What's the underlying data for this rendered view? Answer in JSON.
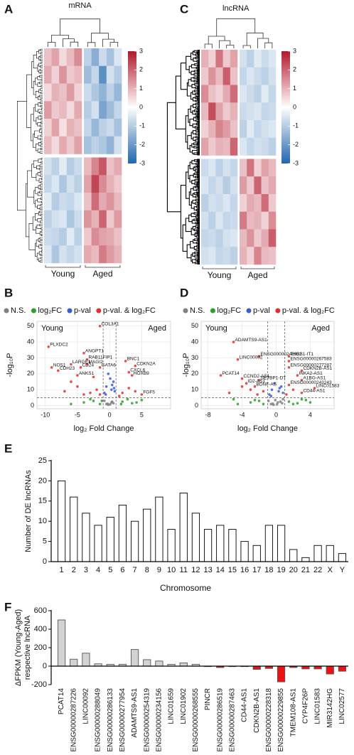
{
  "chart_data": [
    {
      "panel": "A",
      "type": "heatmap",
      "title": "mRNA",
      "clim": [
        -3,
        3
      ],
      "cticks": [
        3,
        2,
        1,
        0,
        -1,
        -2,
        -3
      ],
      "groups": [
        {
          "name": "Young",
          "values": [
            [
              0.8,
              1.2,
              0.5,
              0.9,
              1.5
            ],
            [
              1.1,
              0.6,
              1.4,
              0.7,
              0.9
            ],
            [
              0.5,
              1.0,
              0.8,
              1.3,
              0.6
            ],
            [
              1.3,
              0.7,
              0.9,
              0.5,
              1.1
            ],
            [
              0.6,
              1.2,
              0.4,
              1.0,
              0.8
            ],
            [
              0.9,
              0.5,
              1.1,
              0.7,
              1.2
            ],
            [
              -0.6,
              -0.9,
              -0.4,
              -1.0,
              -0.7
            ],
            [
              -0.8,
              -0.5,
              -1.1,
              -0.6,
              -0.9
            ],
            [
              -0.4,
              -1.0,
              -0.7,
              -0.8,
              -0.5
            ],
            [
              -0.9,
              -0.6,
              -0.5,
              -1.1,
              -0.7
            ],
            [
              -0.7,
              -0.8,
              -1.0,
              -0.4,
              -0.9
            ],
            [
              -0.5,
              -1.1,
              -0.6,
              -0.8,
              -0.6
            ]
          ]
        },
        {
          "name": "Aged",
          "values": [
            [
              -0.9,
              -1.6,
              -0.7,
              -1.2,
              -0.5
            ],
            [
              -1.3,
              -0.8,
              -2.2,
              -0.6,
              -1.0
            ],
            [
              -0.7,
              -1.1,
              -1.5,
              -0.9,
              -1.4
            ],
            [
              -1.0,
              -0.6,
              -1.8,
              -1.3,
              -0.8
            ],
            [
              -0.8,
              -1.4,
              -0.9,
              -0.7,
              -1.2
            ],
            [
              -1.2,
              -0.9,
              -1.1,
              -1.5,
              -0.6
            ],
            [
              0.9,
              1.6,
              2.2,
              0.8,
              1.1
            ],
            [
              1.2,
              2.4,
              1.5,
              1.0,
              0.7
            ],
            [
              0.8,
              1.9,
              1.1,
              1.4,
              0.9
            ],
            [
              1.4,
              1.0,
              2.0,
              0.7,
              1.3
            ],
            [
              0.7,
              1.5,
              1.2,
              1.1,
              0.8
            ],
            [
              1.1,
              0.9,
              1.7,
              1.3,
              1.0
            ]
          ]
        }
      ]
    },
    {
      "panel": "C",
      "type": "heatmap",
      "title": "lncRNA",
      "clim": [
        -3,
        3
      ],
      "cticks": [
        3,
        2,
        1,
        0,
        -1,
        -2,
        -3
      ],
      "groups": [
        {
          "name": "Young",
          "values": [
            [
              1.0,
              0.6,
              1.8,
              0.7,
              1.2
            ],
            [
              0.7,
              1.4,
              0.9,
              2.1,
              0.8
            ],
            [
              1.5,
              0.8,
              0.6,
              1.1,
              1.9
            ],
            [
              0.9,
              2.3,
              1.2,
              0.7,
              1.0
            ],
            [
              0.6,
              1.0,
              1.6,
              1.3,
              0.8
            ],
            [
              1.2,
              0.7,
              1.0,
              0.9,
              2.0
            ],
            [
              -0.7,
              -0.5,
              -0.9,
              -0.6,
              -0.8
            ],
            [
              -0.5,
              -0.8,
              -0.6,
              -1.0,
              -0.6
            ],
            [
              -0.9,
              -0.6,
              -0.7,
              -0.5,
              -0.8
            ],
            [
              -0.6,
              -0.9,
              -0.5,
              -0.8,
              -0.7
            ],
            [
              -0.8,
              -0.7,
              -0.9,
              -0.6,
              -0.5
            ],
            [
              -0.6,
              -0.5,
              -0.8,
              -0.7,
              -0.9
            ]
          ]
        },
        {
          "name": "Aged",
          "values": [
            [
              -0.6,
              -0.9,
              -0.4,
              -0.7,
              -0.5
            ],
            [
              -0.8,
              -0.5,
              -0.7,
              -0.9,
              -0.6
            ],
            [
              -0.5,
              -0.7,
              -0.9,
              -0.4,
              -0.8
            ],
            [
              -0.7,
              -0.6,
              -0.5,
              -0.8,
              -0.7
            ],
            [
              -0.9,
              -0.4,
              -0.8,
              -0.6,
              -0.5
            ],
            [
              -0.5,
              -0.8,
              -0.6,
              -0.7,
              -0.9
            ],
            [
              0.8,
              1.8,
              0.6,
              1.2,
              0.9
            ],
            [
              1.3,
              0.7,
              2.0,
              0.8,
              1.1
            ],
            [
              0.6,
              1.1,
              0.9,
              1.9,
              0.7
            ],
            [
              1.7,
              0.9,
              1.0,
              0.6,
              1.5
            ],
            [
              0.9,
              1.4,
              0.7,
              1.1,
              2.1
            ],
            [
              1.0,
              0.6,
              1.6,
              0.9,
              0.8
            ]
          ]
        }
      ]
    },
    {
      "panel": "B",
      "type": "scatter",
      "xlabel": "log₂ Fold Change",
      "ylabel": "-log₁₀P",
      "xlim": [
        -11.3,
        9.5
      ],
      "ylim": [
        -2,
        53
      ],
      "xticks": [
        -10,
        -5,
        0,
        5
      ],
      "yticks": [
        0,
        10,
        20,
        30,
        40,
        50
      ],
      "grid": true,
      "vlines": [
        -1,
        1
      ],
      "hline": 5,
      "annotations": [
        "Young",
        "Aged"
      ],
      "series": [
        {
          "name": "N.S.",
          "color": "#808080",
          "x": [
            -0.5,
            0.3,
            -0.2,
            0.6,
            -0.8,
            0.1,
            0.4,
            -0.3
          ],
          "y": [
            1,
            2,
            0.5,
            1.5,
            3,
            0.8,
            2.5,
            1.2
          ]
        },
        {
          "name": "log₂FC",
          "color": "#2ca02c",
          "x": [
            -4,
            -2.5,
            -1.5,
            2,
            3.5,
            5,
            -6,
            1.8,
            -3,
            2.8,
            4.2,
            -1.2
          ],
          "y": [
            2,
            3,
            1,
            2.5,
            1.5,
            3.5,
            1,
            1,
            4,
            4,
            2,
            3
          ]
        },
        {
          "name": "p-val",
          "color": "#3b5bd6",
          "x": [
            -0.8,
            -0.5,
            0.3,
            0.6,
            -0.2,
            0.8,
            0.4,
            -0.6,
            0.1,
            0.7
          ],
          "y": [
            8,
            12,
            10,
            15,
            20,
            9,
            13,
            7,
            17,
            11
          ]
        },
        {
          "name": "p-val. & log₂FC",
          "color": "#e0302f",
          "x": [
            -1.5,
            -9.5,
            -4,
            -3.5,
            -6,
            -3.5,
            -9,
            -4.5,
            -8,
            -1.5,
            -5,
            2.5,
            4,
            3,
            3.5,
            5,
            -2,
            -3,
            -5,
            -7,
            -4,
            2,
            3,
            4,
            1.5,
            -1.5,
            -6,
            -2.5
          ],
          "y": [
            50,
            37,
            33,
            29,
            26,
            26,
            24,
            24,
            22,
            24,
            19,
            28,
            25,
            21,
            19,
            7,
            10,
            8,
            12,
            9,
            7,
            8,
            11,
            9,
            6,
            7,
            15,
            18
          ],
          "labels": [
            "COL3A1",
            "PLXDC2",
            "ANGPT1",
            "RAB11FIP1",
            "LARGE1",
            "MAGI2",
            "NOS1",
            "CD24",
            "CDH23",
            "GATA6",
            "ANKS1",
            "BNC1",
            "CDKN2A",
            "CXCL6",
            "HOXB9",
            "FGF5",
            null,
            null,
            null,
            null,
            null,
            null,
            null,
            null,
            null,
            null,
            null,
            null
          ]
        }
      ]
    },
    {
      "panel": "D",
      "type": "scatter",
      "xlabel": "log₂ Fold Change",
      "ylabel": "-log₁₀P",
      "xlim": [
        -8.8,
        6.8
      ],
      "ylim": [
        -2,
        53
      ],
      "xticks": [
        -8,
        -4,
        0,
        4
      ],
      "yticks": [
        0,
        10,
        20,
        30,
        40,
        50
      ],
      "grid": true,
      "vlines": [
        -1,
        1
      ],
      "hline": 5,
      "annotations": [
        "Young",
        "Aged"
      ],
      "series": [
        {
          "name": "N.S.",
          "color": "#808080",
          "x": [
            -0.6,
            0.2,
            -0.3,
            0.7,
            -0.9,
            0.1,
            0.5,
            -0.4,
            0.8,
            -0.1
          ],
          "y": [
            1,
            2,
            0.5,
            1.5,
            3,
            0.8,
            2.5,
            1.2,
            4,
            3.5
          ]
        },
        {
          "name": "log₂FC",
          "color": "#2ca02c",
          "x": [
            -3,
            -2,
            -1.5,
            1.5,
            2.5,
            3.5,
            -4.5,
            2,
            -5,
            3,
            4,
            -2.5
          ],
          "y": [
            2,
            3,
            1,
            2.5,
            1.5,
            3.5,
            1,
            1,
            4,
            4,
            2,
            3.5
          ]
        },
        {
          "name": "p-val",
          "color": "#3b5bd6",
          "x": [
            -0.8,
            -0.5,
            0.3,
            0.6,
            -0.2,
            0.8,
            0.4,
            -0.6
          ],
          "y": [
            7,
            10,
            9,
            12,
            14,
            8,
            11,
            6
          ]
        },
        {
          "name": "p-val. & log₂FC",
          "color": "#e0302f",
          "x": [
            -5,
            -2,
            -4.5,
            1.5,
            1.5,
            1.5,
            3,
            -6.5,
            -4,
            -2,
            -3.5,
            -2.5,
            2.5,
            3,
            1.5,
            4.5,
            3,
            -1.5,
            -3,
            -2.2,
            -4,
            -5.5,
            2,
            1.2
          ],
          "y": [
            40,
            31,
            29,
            31,
            28,
            24,
            22,
            19,
            17,
            16,
            14,
            12,
            19,
            16,
            13,
            11,
            8,
            9,
            10,
            7,
            12,
            8,
            10,
            7
          ],
          "labels": [
            "ADAMTS9-AS1",
            "ENSG00000248932",
            "LINC00092",
            "THBS1-IT1",
            "ENSG00000267583",
            "ENSG00000277287",
            "CDKN2B-AS1",
            "PCAT14",
            "CCND2-AS1",
            "SETBP1-DT",
            "ID2-AS1",
            "BDNF-AS",
            "INKA2-AS1",
            "A1BG-AS1",
            "ENSG00000243243",
            "LINC01583",
            "CD44-AS1",
            null,
            null,
            null,
            null,
            null,
            null,
            null
          ]
        }
      ]
    },
    {
      "panel": "E",
      "type": "bar",
      "ylabel": "Number of DE lncRNAs",
      "xlabel": "Chromosome",
      "color": "#ffffff",
      "edgecolor": "#000000",
      "categories": [
        "1",
        "2",
        "3",
        "4",
        "5",
        "6",
        "7",
        "8",
        "9",
        "10",
        "11",
        "12",
        "13",
        "14",
        "15",
        "16",
        "17",
        "18",
        "19",
        "20",
        "21",
        "22",
        "X",
        "Y"
      ],
      "values": [
        20,
        16,
        12,
        9,
        11,
        14,
        10,
        13,
        16,
        8,
        17,
        12,
        8,
        9,
        8,
        5,
        4,
        9,
        9,
        3,
        1,
        4,
        4,
        2
      ],
      "ylim": [
        0,
        25
      ],
      "yticks": [
        0,
        5,
        10,
        15,
        20,
        25
      ]
    },
    {
      "panel": "F",
      "type": "bar",
      "ylabel": [
        "ΔFPKM (Young-Aged)",
        "respective lncRNA"
      ],
      "color": "#d3d3d3",
      "negative_color": "#ee1111",
      "edgecolor": "#555555",
      "categories": [
        "PCAT14",
        "ENSG00000287226",
        "LINC00092",
        "ENSG00000288049",
        "ENSG00000286133",
        "ENSG00000277954",
        "ADAMTS9-AS1",
        "ENSG00000254319",
        "ENSG00000234156",
        "LINC01659",
        "LINC01902",
        "ENSG00000268555",
        "PINCR",
        "ENSG00000286519",
        "ENSG00000287463",
        "CD44-AS1",
        "CDKN2B-AS1",
        "ENSG00000228318",
        "ENSG00000229855",
        "TMEM108-AS1",
        "CYP4F26P",
        "LINC01583",
        "MIR3142HG",
        "LINC02577"
      ],
      "values": [
        500,
        75,
        140,
        25,
        20,
        20,
        180,
        70,
        55,
        20,
        35,
        20,
        -5,
        -15,
        -5,
        -5,
        -35,
        -25,
        -170,
        -15,
        -30,
        -30,
        -85,
        -55
      ],
      "ylim": [
        -200,
        600
      ],
      "yticks": [
        -200,
        0,
        200,
        400,
        600
      ]
    }
  ]
}
